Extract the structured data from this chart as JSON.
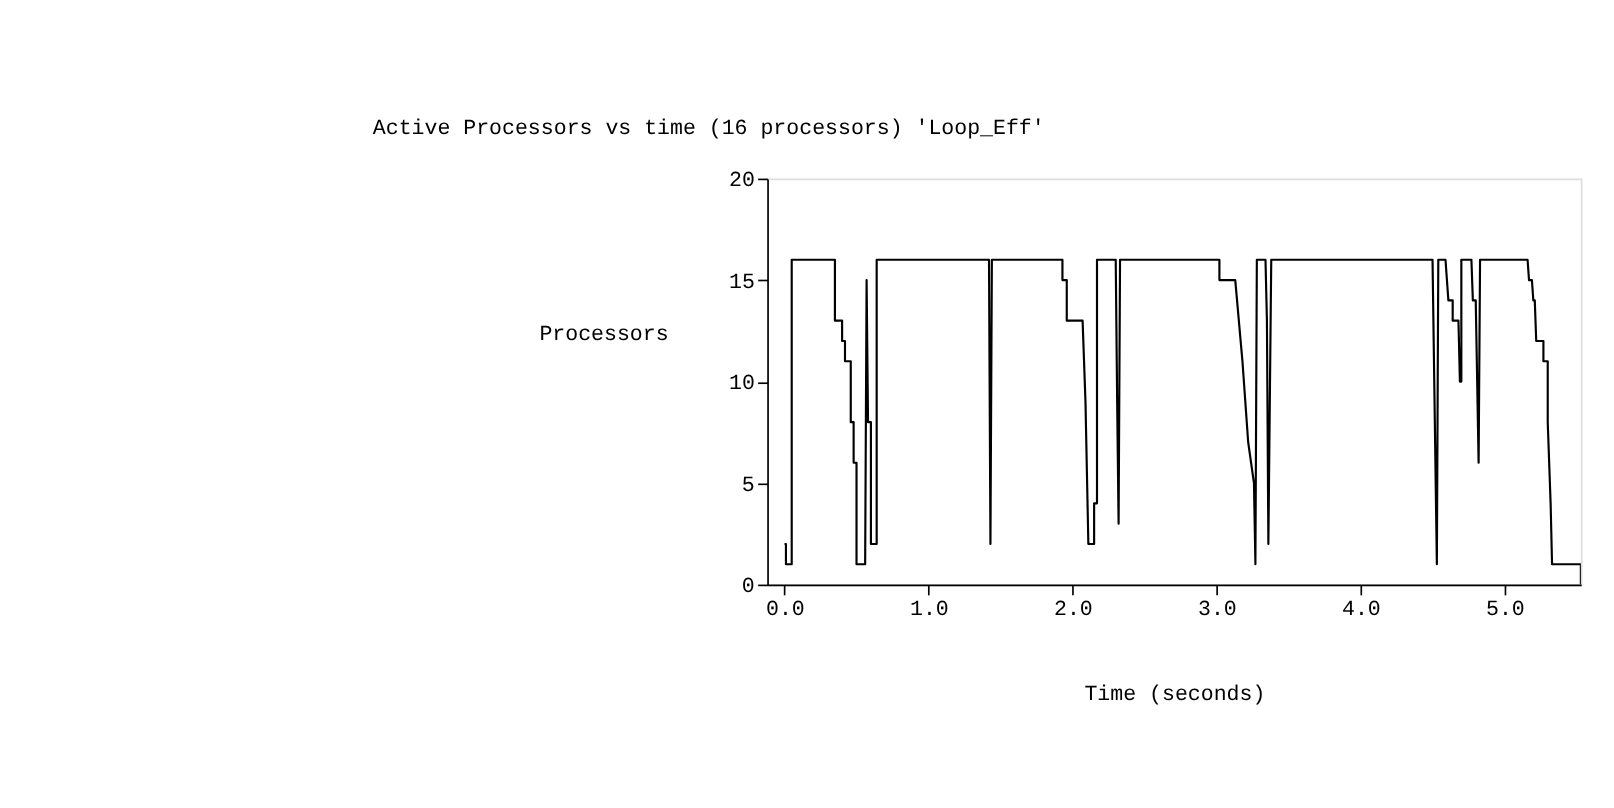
{
  "chart_data": {
    "type": "line",
    "title": "Active Processors vs time (16 processors) 'Loop_Eff'",
    "xlabel": "Time (seconds)",
    "ylabel": "Processors",
    "xlim": [
      -0.12,
      5.53
    ],
    "ylim": [
      0,
      20
    ],
    "xticks": [
      {
        "value": 0,
        "label": "0.0"
      },
      {
        "value": 1,
        "label": "1.0"
      },
      {
        "value": 2,
        "label": "2.0"
      },
      {
        "value": 3,
        "label": "3.0"
      },
      {
        "value": 4,
        "label": "4.0"
      },
      {
        "value": 5,
        "label": "5.0"
      }
    ],
    "yticks": [
      0,
      5,
      10,
      15,
      20
    ],
    "grid": false,
    "legend": false,
    "marker": "none",
    "line_style": "solid",
    "series": [
      {
        "color": "#000000",
        "x": [
          0,
          0.01,
          0.01,
          0.05,
          0.05,
          0.35,
          0.35,
          0.4,
          0.4,
          0.42,
          0.42,
          0.46,
          0.46,
          0.48,
          0.48,
          0.5,
          0.5,
          0.56,
          0.57,
          0.58,
          0.6,
          0.6,
          0.64,
          0.64,
          1.42,
          1.43,
          1.44,
          1.93,
          1.93,
          1.96,
          1.96,
          2.07,
          2.09,
          2.11,
          2.15,
          2.15,
          2.17,
          2.17,
          2.3,
          2.31,
          2.32,
          2.33,
          3.02,
          3.02,
          3.13,
          3.18,
          3.22,
          3.26,
          3.27,
          3.28,
          3.34,
          3.35,
          3.36,
          3.38,
          4.5,
          4.53,
          4.54,
          4.59,
          4.61,
          4.64,
          4.64,
          4.68,
          4.69,
          4.7,
          4.7,
          4.77,
          4.78,
          4.8,
          4.82,
          4.83,
          5.16,
          5.17,
          5.19,
          5.2,
          5.21,
          5.22,
          5.27,
          5.27,
          5.3,
          5.3,
          5.32,
          5.33,
          5.53,
          5.53
        ],
        "values": [
          2,
          2,
          1,
          1,
          16,
          16,
          13,
          13,
          12,
          12,
          11,
          11,
          8,
          8,
          6,
          6,
          1,
          1,
          15,
          8,
          8,
          2,
          2,
          16,
          16,
          2,
          16,
          16,
          15,
          15,
          13,
          13,
          9,
          2,
          2,
          4,
          4,
          16,
          16,
          9,
          3,
          16,
          16,
          15,
          15,
          11,
          7,
          5,
          1,
          16,
          16,
          13,
          2,
          16,
          16,
          1,
          16,
          16,
          14,
          14,
          13,
          13,
          10,
          10,
          16,
          16,
          14,
          14,
          6,
          16,
          16,
          15,
          15,
          14,
          14,
          12,
          12,
          11,
          11,
          8,
          4,
          1,
          1,
          0
        ]
      }
    ]
  }
}
